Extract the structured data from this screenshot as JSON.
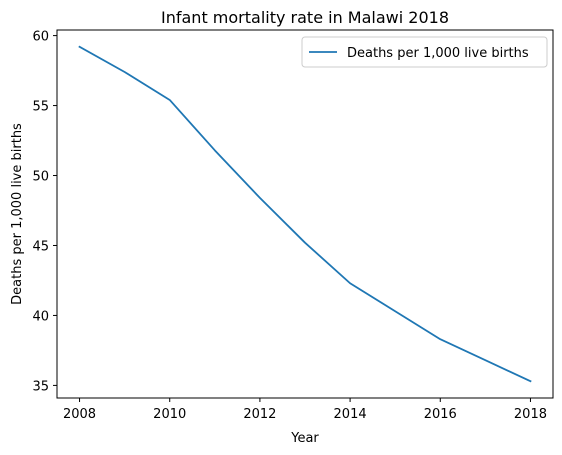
{
  "chart_data": {
    "type": "line",
    "title": "Infant mortality rate in Malawi 2018",
    "xlabel": "Year",
    "ylabel": "Deaths per 1,000 live births",
    "x": [
      2008,
      2009,
      2010,
      2011,
      2012,
      2013,
      2014,
      2015,
      2016,
      2017,
      2018
    ],
    "series": [
      {
        "name": "Deaths per 1,000 live births",
        "color": "#1f77b4",
        "values": [
          59.2,
          57.4,
          55.4,
          51.8,
          48.4,
          45.2,
          42.3,
          40.3,
          38.3,
          36.8,
          35.3
        ]
      }
    ],
    "xticks": [
      2008,
      2010,
      2012,
      2014,
      2016,
      2018
    ],
    "yticks": [
      35,
      40,
      45,
      50,
      55,
      60
    ],
    "xlim": [
      2007.5,
      2018.5
    ],
    "ylim": [
      34.1,
      60.4
    ],
    "grid": false,
    "legend": "upper right"
  }
}
